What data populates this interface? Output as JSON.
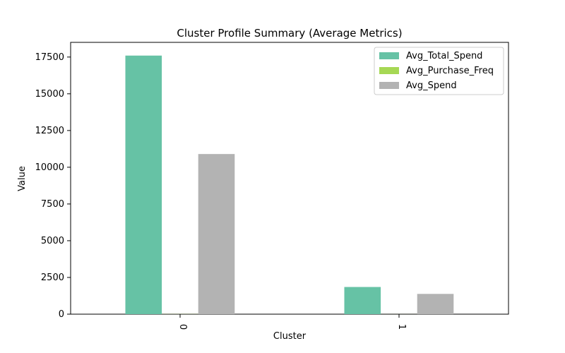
{
  "chart_data": {
    "type": "bar",
    "title": "Cluster Profile Summary (Average Metrics)",
    "xlabel": "Cluster",
    "ylabel": "Value",
    "categories": [
      "0",
      "1"
    ],
    "series": [
      {
        "name": "Avg_Total_Spend",
        "color": "#66c2a5",
        "values": [
          17600,
          1850
        ]
      },
      {
        "name": "Avg_Purchase_Freq",
        "color": "#a6d854",
        "values": [
          8,
          2
        ]
      },
      {
        "name": "Avg_Spend",
        "color": "#b3b3b3",
        "values": [
          10900,
          1380
        ]
      }
    ],
    "ylim": [
      0,
      18500
    ],
    "yticks": [
      "0",
      "2500",
      "5000",
      "7500",
      "10000",
      "12500",
      "15000",
      "17500"
    ],
    "grid": false,
    "legend_position": "top-right"
  }
}
